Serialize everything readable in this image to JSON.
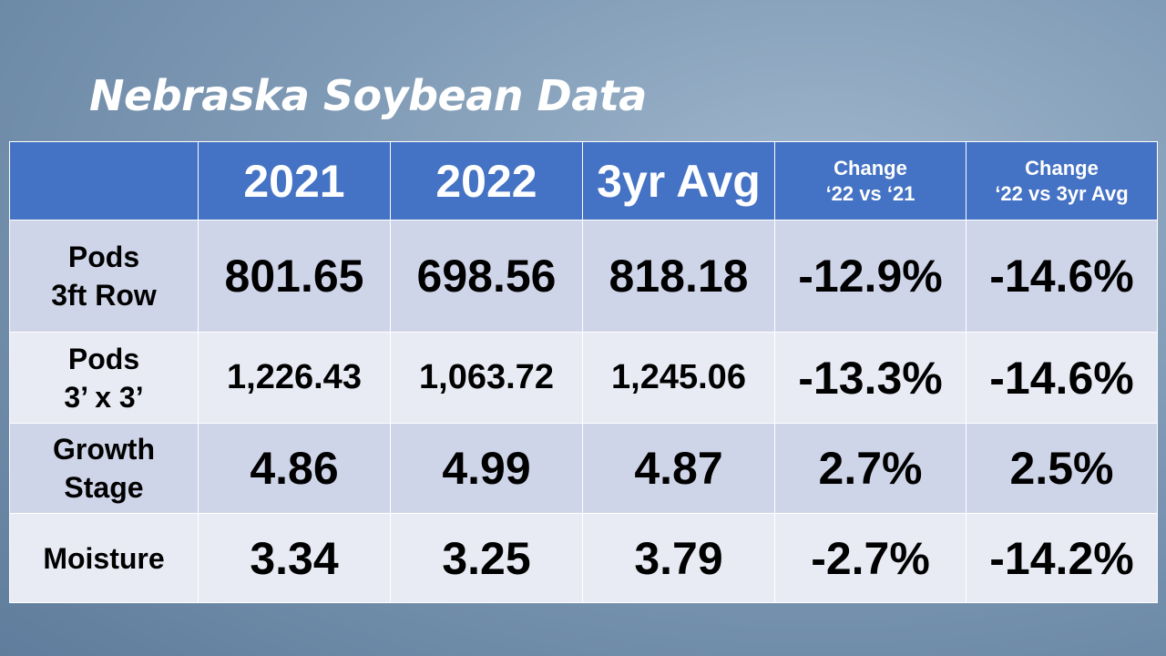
{
  "title": "Nebraska Soybean Data",
  "table": {
    "header": [
      [
        "2021"
      ],
      [
        "2022"
      ],
      [
        "3yr Avg"
      ],
      [
        "Change",
        "‘22 vs ‘21"
      ],
      [
        "Change",
        "‘22 vs 3yr Avg"
      ]
    ],
    "rows": [
      {
        "label": [
          "Pods",
          "3ft Row"
        ],
        "cells": [
          "801.65",
          "698.56",
          "818.18",
          "-12.9%",
          "-14.6%"
        ]
      },
      {
        "label": [
          "Pods",
          "3’ x 3’"
        ],
        "cells": [
          "1,226.43",
          "1,063.72",
          "1,245.06",
          "-13.3%",
          "-14.6%"
        ]
      },
      {
        "label": [
          "Growth",
          "Stage"
        ],
        "cells": [
          "4.86",
          "4.99",
          "4.87",
          "2.7%",
          "2.5%"
        ]
      },
      {
        "label": [
          "Moisture"
        ],
        "cells": [
          "3.34",
          "3.25",
          "3.79",
          "-2.7%",
          "-14.2%"
        ]
      }
    ]
  }
}
